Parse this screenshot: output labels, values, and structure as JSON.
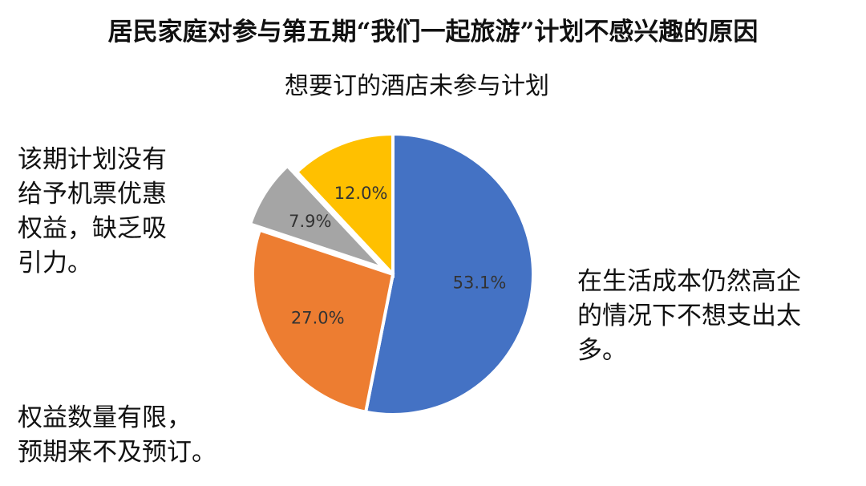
{
  "chart_data": {
    "type": "pie",
    "title": "居民家庭对参与第五期“我们一起旅游”计划不感兴趣的原因",
    "subtitle": "想要订的酒店未参与计划",
    "slices": [
      {
        "label": "在生活成本仍然高企的情况下不想支出太多",
        "value": 53.1,
        "value_label": "53.1%",
        "color": "#4472C4"
      },
      {
        "label": "权益数量有限，预期来不及预订。",
        "value": 27.0,
        "value_label": "27.0%",
        "color": "#ED7D31"
      },
      {
        "label": "该期计划没有给予机票优惠权益，缺乏吸引力。",
        "value": 7.9,
        "value_label": "7.9%",
        "color": "#A5A5A5"
      },
      {
        "label": "想要订的酒店未参与计划",
        "value": 12.0,
        "value_label": "12.0%",
        "color": "#FFC000"
      }
    ],
    "annotations": [
      {
        "lines": [
          "该期计划没有",
          "给予机票优惠",
          "权益，缺乏吸",
          "引力。"
        ]
      },
      {
        "lines": [
          "在生活成本仍然高企",
          "的情况下不想支出太",
          "多。"
        ]
      },
      {
        "lines": [
          "权益数量有限，",
          "预期来不及预订。"
        ]
      }
    ]
  }
}
